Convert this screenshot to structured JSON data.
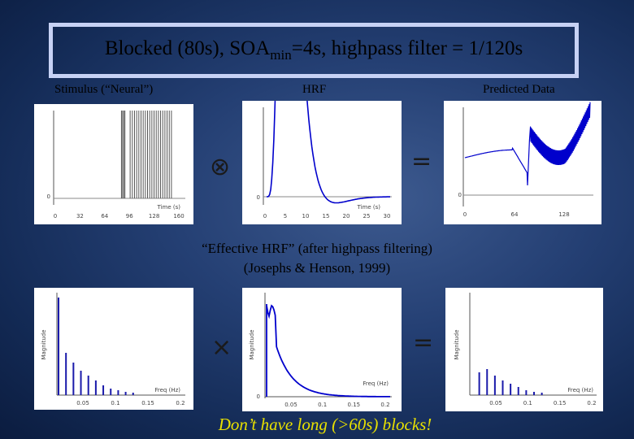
{
  "title": {
    "main": "Blocked (80s), SOA",
    "sub": "min",
    "rest": "=4s, highpass filter = 1/120s"
  },
  "labels": {
    "stimulus": "Stimulus (“Neural”)",
    "hrf": "HRF",
    "predicted": "Predicted Data"
  },
  "operators": {
    "convolve": "⊗",
    "equals_top": "=",
    "times": "×",
    "equals_bottom": "="
  },
  "middle_text": {
    "line1": "“Effective HRF” (after highpass filtering)",
    "line2": "(Josephs & Henson, 1999)"
  },
  "bottom_text": "Don’t have long (>60s) blocks!",
  "colors": {
    "trace": "#0000cc",
    "stem": "#1a1aaa",
    "grid": "#dddddd"
  },
  "chart_data": [
    {
      "type": "line",
      "name": "stimulus",
      "xlabel": "Time (s)",
      "xticks": [
        "0",
        "32",
        "64",
        "96",
        "128",
        "160"
      ],
      "ylabel_zero": "0",
      "description_of_marks": "impulse train"
    },
    {
      "type": "line",
      "name": "hrf",
      "xlabel": "Time (s)",
      "xticks": [
        "0",
        "5",
        "10",
        "15",
        "20",
        "25",
        "30"
      ],
      "ylabel_zero": "0"
    },
    {
      "type": "line",
      "name": "predicted",
      "xticks": [
        "0",
        "64",
        "128"
      ],
      "ylabel_zero": "0"
    },
    {
      "type": "bar",
      "name": "stimulus-spectrum",
      "xlabel": "Freq (Hz)",
      "ylabel": "Magnitude",
      "xticks": [
        "0.05",
        "0.1",
        "0.15",
        "0.2"
      ]
    },
    {
      "type": "line",
      "name": "effective-hrf",
      "xlabel": "Freq (Hz)",
      "ylabel": "Magnitude",
      "xticks": [
        "0.05",
        "0.1",
        "0.15",
        "0.2"
      ],
      "ylabel_zero": "0"
    },
    {
      "type": "bar",
      "name": "predicted-spectrum",
      "xlabel": "Freq (Hz)",
      "ylabel": "Magnitude",
      "xticks": [
        "0.05",
        "0.1",
        "0.15",
        "0.2"
      ]
    }
  ]
}
